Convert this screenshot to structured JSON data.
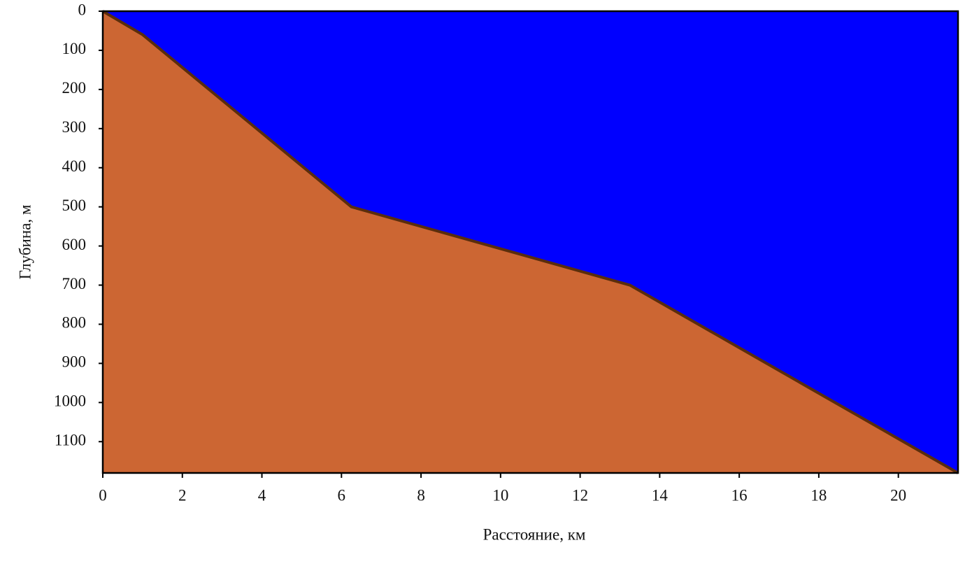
{
  "chart_data": {
    "type": "area",
    "x_label": "Расстояние, км",
    "y_label": "Глубина, м",
    "x": [
      0,
      1,
      6.25,
      13.25,
      21.5
    ],
    "values": [
      0,
      60,
      500,
      700,
      1180
    ],
    "color": "#cc6633",
    "line_color": "#5a2d0c",
    "background_color": "#0000ff",
    "xlim": [
      0,
      21.5
    ],
    "ylim": [
      0,
      1180
    ],
    "y_inverted": true,
    "xticks": [
      0,
      2,
      4,
      6,
      8,
      10,
      12,
      14,
      16,
      18,
      20
    ],
    "yticks": [
      0,
      100,
      200,
      300,
      400,
      500,
      600,
      700,
      800,
      900,
      1000,
      1100
    ]
  }
}
